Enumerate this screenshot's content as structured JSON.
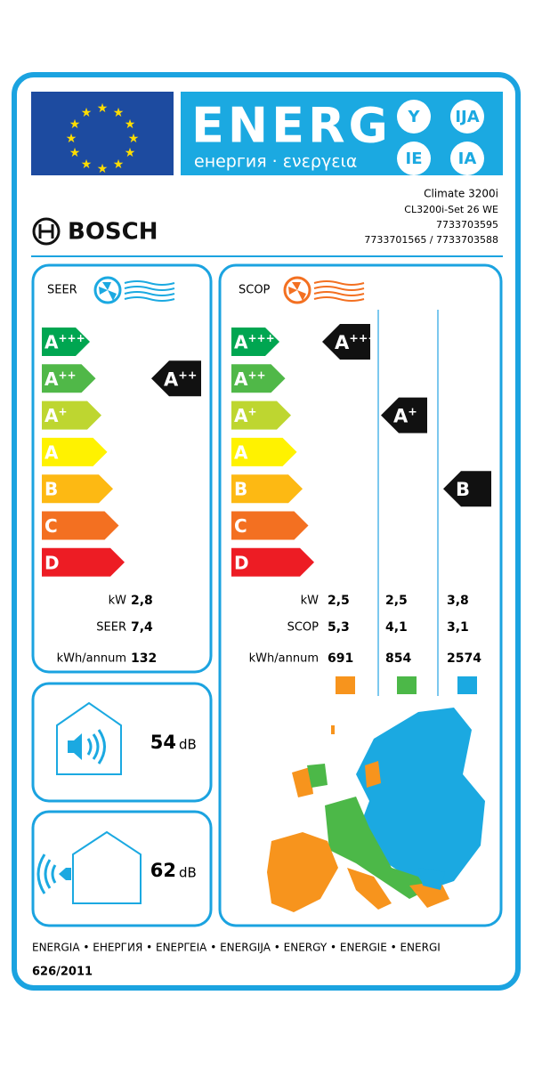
{
  "header": {
    "energy": "ENERG",
    "energy_subtitle": "енергия · ενεργεια",
    "language_badges": [
      "Y",
      "IJA",
      "IE",
      "IA"
    ]
  },
  "supplier": "BOSCH",
  "model": [
    "Climate 3200i",
    "CL3200i-Set 26 WE",
    "7733703595",
    "7733701565 / 7733703588"
  ],
  "classes": [
    "A+++",
    "A++",
    "A+",
    "A",
    "B",
    "C",
    "D"
  ],
  "cooling": {
    "label": "SEER",
    "class": "A++",
    "rows": [
      {
        "label": "kW",
        "value": "2,8"
      },
      {
        "label": "SEER",
        "value": "7,4"
      },
      {
        "label": "kWh/annum",
        "value": "132"
      }
    ]
  },
  "heating": {
    "label": "SCOP",
    "classes": [
      "A+++",
      "A+",
      "B"
    ],
    "rows": [
      {
        "label": "kW",
        "values": [
          "2,5",
          "2,5",
          "3,8"
        ]
      },
      {
        "label": "SCOP",
        "values": [
          "5,3",
          "4,1",
          "3,1"
        ]
      },
      {
        "label": "kWh/annum",
        "values": [
          "691",
          "854",
          "2574"
        ]
      }
    ]
  },
  "noise": {
    "indoor": "54",
    "outdoor": "62",
    "unit": "dB"
  },
  "footer": {
    "energy_words": "ENERGIA • ЕНЕРГИЯ • ΕΝΕΡΓΕΙΑ • ENERGIJA • ENERGY • ENERGIE • ENERGI",
    "regulation": "626/2011"
  }
}
